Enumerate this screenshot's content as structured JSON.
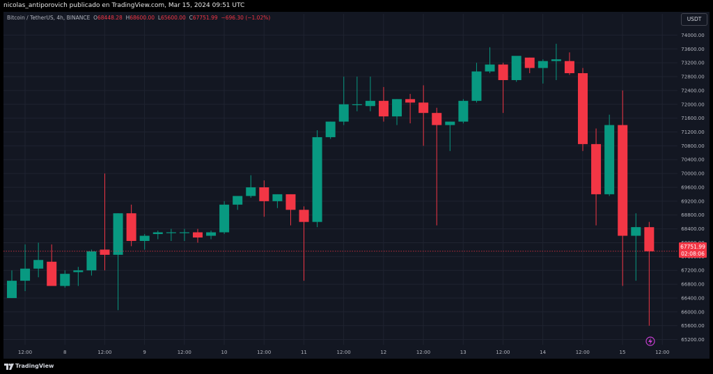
{
  "header": {
    "text": "nicolas_antiporovich publicado en TradingView.com, Mar 15, 2024 09:51 UTC"
  },
  "legend": {
    "symbol": "Bitcoin / TetherUS, 4h, BINANCE",
    "o_label": "O",
    "o": "68448.28",
    "h_label": "H",
    "h": "68600.00",
    "l_label": "L",
    "l": "65600.00",
    "c_label": "C",
    "c": "67751.99",
    "change": "−696.30 (−1.02%)"
  },
  "currency_button": "USDT",
  "price_label": {
    "price": "67751.99",
    "countdown": "02:08:06"
  },
  "footer": {
    "brand": "TradingView"
  },
  "colors": {
    "up": "#089981",
    "down": "#f23645",
    "background": "#131722",
    "grid": "#1f2330",
    "axis_text": "#b2b5be"
  },
  "chart_data": {
    "type": "candlestick",
    "y_axis_ticks": [
      "74000.00",
      "73600.00",
      "73200.00",
      "72800.00",
      "72400.00",
      "72000.00",
      "71600.00",
      "71200.00",
      "70800.00",
      "70400.00",
      "70000.00",
      "69600.00",
      "69200.00",
      "68800.00",
      "68400.00",
      "68000.00",
      "67600.00",
      "67200.00",
      "66800.00",
      "66400.00",
      "66000.00",
      "65600.00",
      "65200.00"
    ],
    "ylim": [
      65050,
      74250
    ],
    "x_axis_ticks": [
      "12:00",
      "8",
      "12:00",
      "9",
      "12:00",
      "10",
      "12:00",
      "11",
      "12:00",
      "12",
      "12:00",
      "13",
      "12:00",
      "14",
      "12:00",
      "15",
      "12:00"
    ],
    "candles": [
      {
        "o": 66400,
        "h": 67200,
        "l": 66400,
        "c": 66900
      },
      {
        "o": 66900,
        "h": 67950,
        "l": 66600,
        "c": 67250
      },
      {
        "o": 67250,
        "h": 68000,
        "l": 67000,
        "c": 67500
      },
      {
        "o": 67450,
        "h": 67950,
        "l": 66800,
        "c": 66750
      },
      {
        "o": 66750,
        "h": 67200,
        "l": 66700,
        "c": 67100
      },
      {
        "o": 67150,
        "h": 67300,
        "l": 66750,
        "c": 67200
      },
      {
        "o": 67200,
        "h": 67800,
        "l": 67050,
        "c": 67750
      },
      {
        "o": 67800,
        "h": 70000,
        "l": 67200,
        "c": 67650
      },
      {
        "o": 67650,
        "h": 68850,
        "l": 66050,
        "c": 68850
      },
      {
        "o": 68850,
        "h": 69100,
        "l": 67900,
        "c": 68050
      },
      {
        "o": 68050,
        "h": 68250,
        "l": 67800,
        "c": 68200
      },
      {
        "o": 68250,
        "h": 68350,
        "l": 68100,
        "c": 68300
      },
      {
        "o": 68300,
        "h": 68400,
        "l": 68050,
        "c": 68300
      },
      {
        "o": 68300,
        "h": 68400,
        "l": 68050,
        "c": 68300
      },
      {
        "o": 68300,
        "h": 68400,
        "l": 68000,
        "c": 68150
      },
      {
        "o": 68200,
        "h": 68350,
        "l": 68100,
        "c": 68300
      },
      {
        "o": 68300,
        "h": 69200,
        "l": 68250,
        "c": 69100
      },
      {
        "o": 69100,
        "h": 69300,
        "l": 68950,
        "c": 69350
      },
      {
        "o": 69350,
        "h": 69950,
        "l": 69300,
        "c": 69600
      },
      {
        "o": 69600,
        "h": 69800,
        "l": 68750,
        "c": 69200
      },
      {
        "o": 69200,
        "h": 69400,
        "l": 69000,
        "c": 69400
      },
      {
        "o": 69400,
        "h": 69400,
        "l": 68500,
        "c": 68950
      },
      {
        "o": 68950,
        "h": 69050,
        "l": 66900,
        "c": 68600
      },
      {
        "o": 68600,
        "h": 71250,
        "l": 68450,
        "c": 71050
      },
      {
        "o": 71050,
        "h": 71500,
        "l": 71000,
        "c": 71500
      },
      {
        "o": 71500,
        "h": 72800,
        "l": 71400,
        "c": 72000
      },
      {
        "o": 72000,
        "h": 72800,
        "l": 71800,
        "c": 72000
      },
      {
        "o": 71950,
        "h": 72800,
        "l": 71800,
        "c": 72100
      },
      {
        "o": 72100,
        "h": 72500,
        "l": 71500,
        "c": 71650
      },
      {
        "o": 71650,
        "h": 72150,
        "l": 71400,
        "c": 72150
      },
      {
        "o": 72150,
        "h": 72300,
        "l": 71450,
        "c": 72050
      },
      {
        "o": 72050,
        "h": 72550,
        "l": 70800,
        "c": 71750
      },
      {
        "o": 71750,
        "h": 71900,
        "l": 68500,
        "c": 71400
      },
      {
        "o": 71400,
        "h": 71500,
        "l": 70650,
        "c": 71500
      },
      {
        "o": 71500,
        "h": 72150,
        "l": 71450,
        "c": 72100
      },
      {
        "o": 72100,
        "h": 73200,
        "l": 72050,
        "c": 72950
      },
      {
        "o": 72950,
        "h": 73650,
        "l": 72900,
        "c": 73150
      },
      {
        "o": 73150,
        "h": 73200,
        "l": 71750,
        "c": 72700
      },
      {
        "o": 72700,
        "h": 73350,
        "l": 72650,
        "c": 73400
      },
      {
        "o": 73350,
        "h": 73350,
        "l": 72900,
        "c": 73050
      },
      {
        "o": 73050,
        "h": 73300,
        "l": 72600,
        "c": 73250
      },
      {
        "o": 73250,
        "h": 73750,
        "l": 72700,
        "c": 73300
      },
      {
        "o": 73250,
        "h": 73500,
        "l": 72850,
        "c": 72900
      },
      {
        "o": 72900,
        "h": 73050,
        "l": 70650,
        "c": 70850
      },
      {
        "o": 70850,
        "h": 71300,
        "l": 68500,
        "c": 69400
      },
      {
        "o": 69400,
        "h": 71700,
        "l": 69350,
        "c": 71400
      },
      {
        "o": 71400,
        "h": 72400,
        "l": 66750,
        "c": 68200
      },
      {
        "o": 68200,
        "h": 68850,
        "l": 66900,
        "c": 68450
      },
      {
        "o": 68448.28,
        "h": 68600,
        "l": 65600,
        "c": 67751.99
      }
    ]
  }
}
